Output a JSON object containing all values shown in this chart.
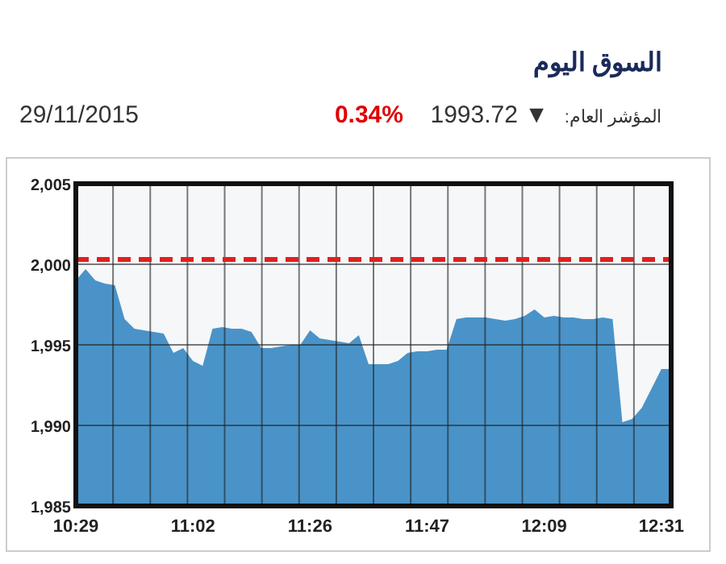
{
  "chart_data": {
    "type": "area",
    "title": "السوق اليوم",
    "annotations": [
      "المؤشر العام:",
      "1993.72 ▼",
      "0.34%",
      "29/11/2015"
    ],
    "categories": [
      "10:29",
      null,
      null,
      null,
      null,
      null,
      null,
      null,
      null,
      null,
      null,
      null,
      "11:02",
      null,
      null,
      null,
      null,
      null,
      null,
      null,
      null,
      null,
      null,
      null,
      "11:26",
      null,
      null,
      null,
      null,
      null,
      null,
      null,
      null,
      null,
      null,
      null,
      "11:47",
      null,
      null,
      null,
      null,
      null,
      null,
      null,
      null,
      null,
      null,
      null,
      "12:09",
      null,
      null,
      null,
      null,
      null,
      null,
      null,
      null,
      null,
      null,
      null,
      "12:31",
      null
    ],
    "series": [
      {
        "color": "#4a93c8",
        "values": [
          1999.0,
          1999.7,
          1999.0,
          1998.8,
          1998.7,
          1996.6,
          1996.0,
          1995.9,
          1995.8,
          1995.7,
          1994.5,
          1994.8,
          1994.0,
          1993.7,
          1996.0,
          1996.1,
          1996.0,
          1996.0,
          1995.8,
          1994.8,
          1994.8,
          1994.9,
          1995.0,
          1995.0,
          1995.9,
          1995.4,
          1995.3,
          1995.2,
          1995.1,
          1995.6,
          1993.8,
          1993.8,
          1993.8,
          1994.0,
          1994.5,
          1994.6,
          1994.6,
          1994.7,
          1994.7,
          1996.6,
          1996.7,
          1996.7,
          1996.7,
          1996.6,
          1996.5,
          1996.6,
          1996.8,
          1997.2,
          1996.7,
          1996.8,
          1996.7,
          1996.7,
          1996.6,
          1996.6,
          1996.7,
          1996.6,
          1990.2,
          1990.4,
          1991.1,
          1992.3,
          1993.5,
          1993.5
        ]
      }
    ],
    "ylim": [
      1985,
      2005
    ],
    "yticks": [
      {
        "value": 1985,
        "label": "1,985"
      },
      {
        "value": 1990,
        "label": "1,990"
      },
      {
        "value": 1995,
        "label": "1,995"
      },
      {
        "value": 2000,
        "label": "2,000"
      },
      {
        "value": 2005,
        "label": "2,005"
      }
    ],
    "ref_lines": [
      {
        "axis": "y",
        "value": 2000.3,
        "color": "#e02020",
        "line_style": "dashed"
      }
    ],
    "grid": true
  }
}
